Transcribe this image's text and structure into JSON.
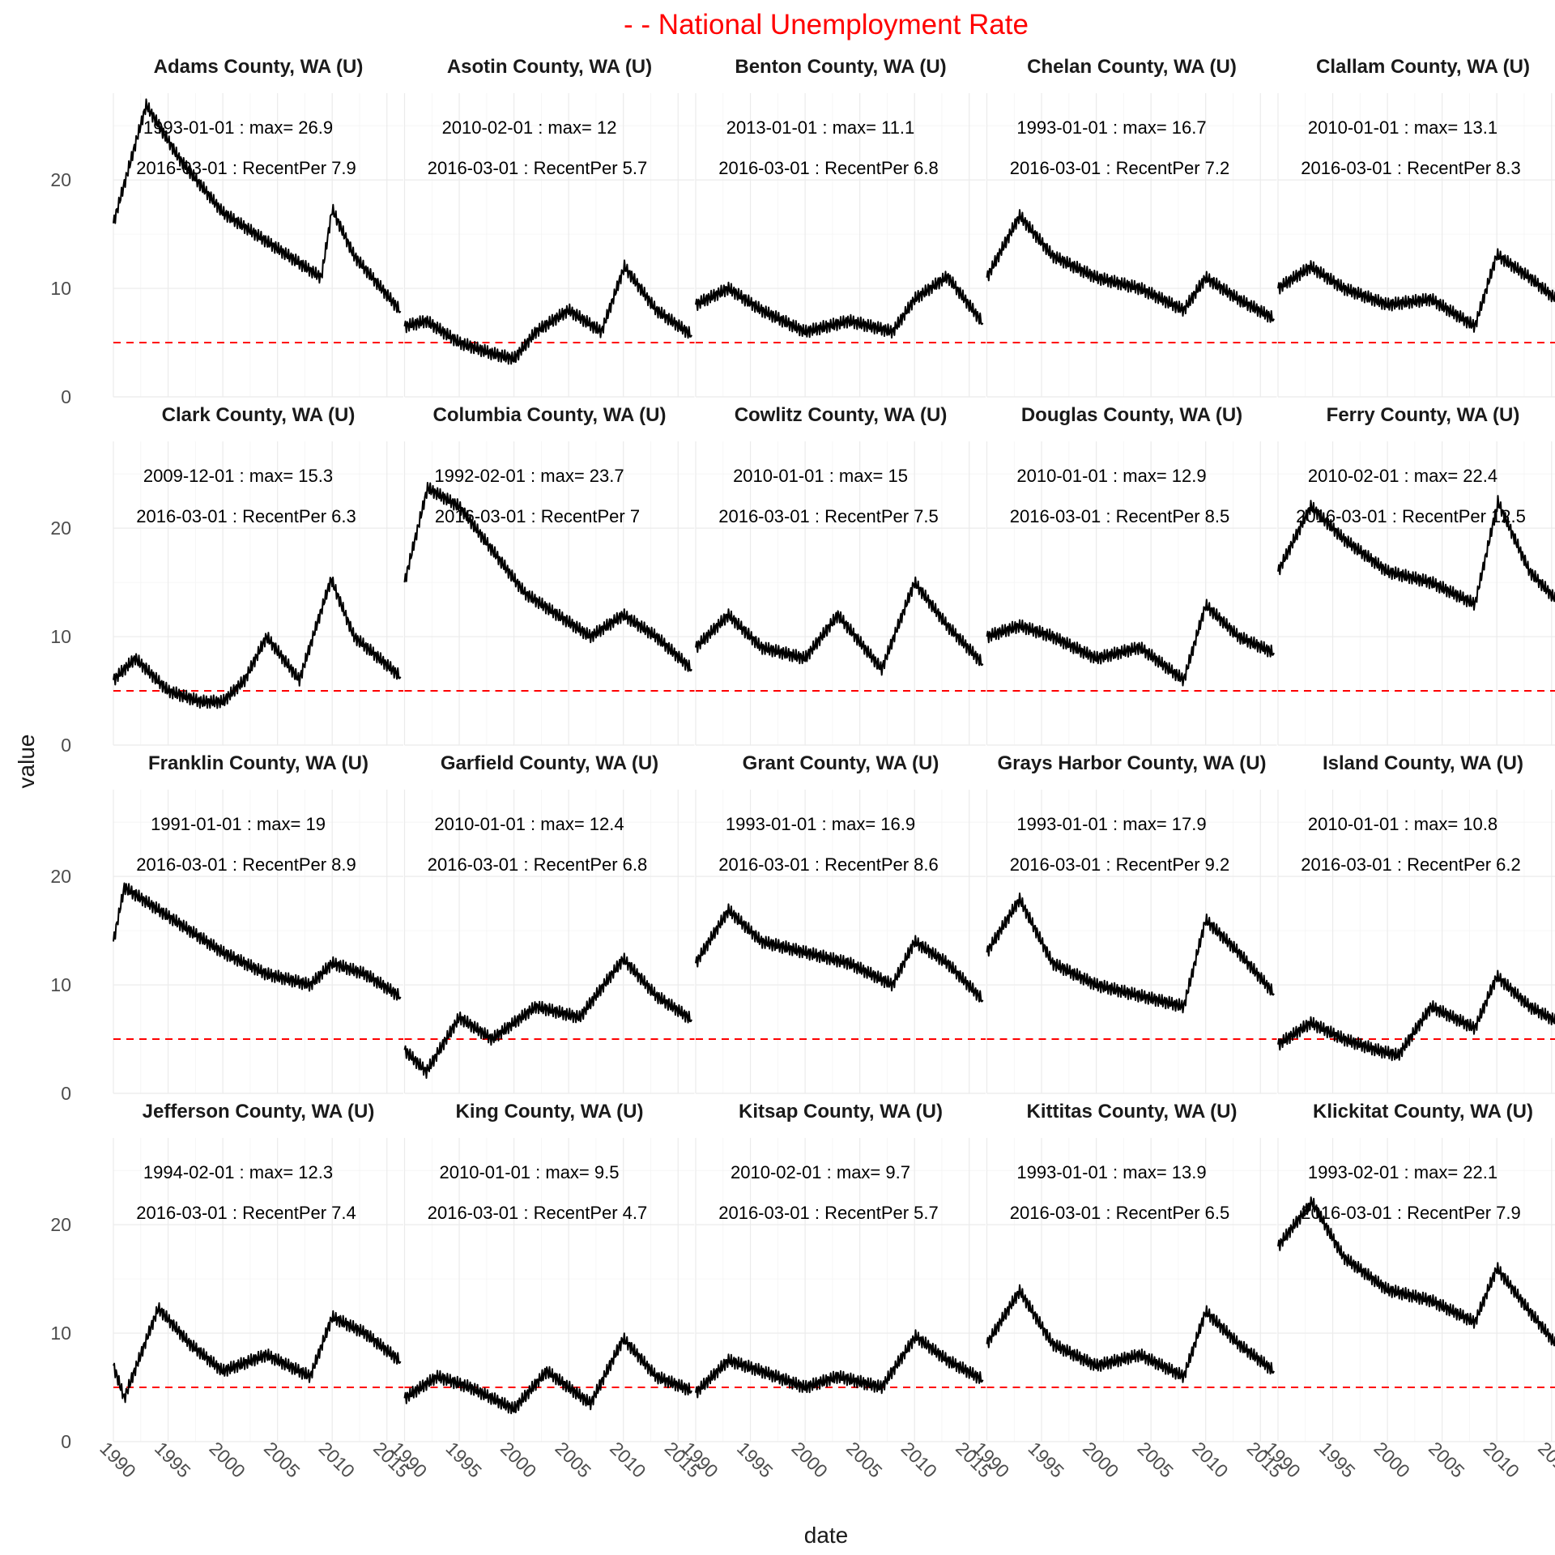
{
  "chart_data": {
    "type": "line",
    "title": "- - National Unemployment Rate",
    "xlabel": "date",
    "ylabel": "value",
    "xlim": [
      1990,
      2016.5
    ],
    "ylim": [
      0,
      28
    ],
    "x_ticks": [
      "1990",
      "1995",
      "2000",
      "2005",
      "2010",
      "2015"
    ],
    "y_ticks": [
      0,
      10,
      20
    ],
    "reference_line": {
      "value": 5.0,
      "color": "#ff0000",
      "style": "dashed"
    },
    "grid": true,
    "series_color": "#000000",
    "panels": [
      {
        "name": "Adams County, WA (U)",
        "max_label": "1993-01-01 : max= 26.9",
        "recent_label": "2016-03-01 : RecentPer 7.9",
        "x": [
          1990,
          1993,
          1996,
          2000,
          2003,
          2006,
          2009,
          2010,
          2012,
          2016.25
        ],
        "y": [
          16,
          26.9,
          22,
          17,
          15,
          13,
          11,
          17.3,
          13,
          7.9
        ]
      },
      {
        "name": "Asotin County, WA (U)",
        "max_label": "2010-02-01 : max= 12",
        "recent_label": "2016-03-01 : RecentPer 5.7",
        "x": [
          1990,
          1992,
          1995,
          1998,
          2000,
          2002,
          2005,
          2008,
          2010.1,
          2013,
          2016.25
        ],
        "y": [
          6.5,
          7,
          5,
          4,
          3.5,
          6,
          8,
          6,
          12,
          8,
          5.7
        ]
      },
      {
        "name": "Benton County, WA (U)",
        "max_label": "2013-01-01 : max= 11.1",
        "recent_label": "2016-03-01 : RecentPer 6.8",
        "x": [
          1990,
          1993,
          1996,
          2000,
          2004,
          2008,
          2010,
          2013,
          2016.25
        ],
        "y": [
          8.5,
          10,
          8,
          6,
          7,
          6,
          9,
          11.1,
          6.8
        ]
      },
      {
        "name": "Chelan County, WA (U)",
        "max_label": "1993-01-01 : max= 16.7",
        "recent_label": "2016-03-01 : RecentPer 7.2",
        "x": [
          1990,
          1993,
          1996,
          2000,
          2004,
          2008,
          2010,
          2013,
          2016.25
        ],
        "y": [
          11,
          16.7,
          13,
          11,
          10,
          8,
          11,
          9,
          7.2
        ]
      },
      {
        "name": "Clallam County, WA (U)",
        "max_label": "2010-01-01 : max= 13.1",
        "recent_label": "2016-03-01 : RecentPer 8.3",
        "x": [
          1990,
          1993,
          1996,
          2000,
          2004,
          2008,
          2010,
          2013,
          2016.25
        ],
        "y": [
          10,
          12,
          10,
          8.5,
          9,
          6.5,
          13.1,
          11,
          8.3
        ]
      },
      {
        "name": "Clark County, WA (U)",
        "max_label": "2009-12-01 : max= 15.3",
        "recent_label": "2016-03-01 : RecentPer 6.3",
        "x": [
          1990,
          1992,
          1995,
          1998,
          2000,
          2002,
          2004,
          2007,
          2009.9,
          2012,
          2016.25
        ],
        "y": [
          6,
          8,
          5,
          4,
          4,
          6,
          10,
          6,
          15.3,
          10,
          6.3
        ]
      },
      {
        "name": "Columbia County, WA (U)",
        "max_label": "1992-02-01 : max= 23.7",
        "recent_label": "2016-03-01 : RecentPer 7",
        "x": [
          1990,
          1992.1,
          1995,
          1998,
          2001,
          2004,
          2007,
          2010,
          2013,
          2016.25
        ],
        "y": [
          15,
          23.7,
          22,
          18,
          14,
          12,
          10,
          12,
          10,
          7
        ]
      },
      {
        "name": "Cowlitz County, WA (U)",
        "max_label": "2010-01-01 : max= 15",
        "recent_label": "2016-03-01 : RecentPer 7.5",
        "x": [
          1990,
          1993,
          1996,
          2000,
          2003,
          2007,
          2010,
          2013,
          2016.25
        ],
        "y": [
          9,
          12,
          9,
          8,
          12,
          7,
          15,
          11,
          7.5
        ]
      },
      {
        "name": "Douglas County, WA (U)",
        "max_label": "2010-01-01 : max= 12.9",
        "recent_label": "2016-03-01 : RecentPer 8.5",
        "x": [
          1990,
          1993,
          1996,
          2000,
          2004,
          2008,
          2010,
          2013,
          2016.25
        ],
        "y": [
          10,
          11,
          10,
          8,
          9,
          6,
          12.9,
          10,
          8.5
        ]
      },
      {
        "name": "Ferry County, WA (U)",
        "max_label": "2010-02-01 : max= 22.4",
        "recent_label": "2016-03-01 : RecentPer 12.5",
        "x": [
          1990,
          1993,
          1996,
          2000,
          2004,
          2008,
          2010.1,
          2013,
          2016.25
        ],
        "y": [
          16,
          22,
          19,
          16,
          15,
          13,
          22.4,
          16,
          12.5
        ]
      },
      {
        "name": "Franklin County, WA (U)",
        "max_label": "1991-01-01 : max= 19",
        "recent_label": "2016-03-01 : RecentPer 8.9",
        "x": [
          1990,
          1991,
          1994,
          1997,
          2000,
          2004,
          2008,
          2010,
          2013,
          2016.25
        ],
        "y": [
          14,
          19,
          17,
          15,
          13,
          11,
          10,
          12,
          11,
          8.9
        ]
      },
      {
        "name": "Garfield County, WA (U)",
        "max_label": "2010-01-01 : max= 12.4",
        "recent_label": "2016-03-01 : RecentPer 6.8",
        "x": [
          1990,
          1992,
          1995,
          1998,
          2002,
          2006,
          2010,
          2013,
          2016.25
        ],
        "y": [
          4,
          2,
          7,
          5,
          8,
          7,
          12.4,
          9,
          6.8
        ]
      },
      {
        "name": "Grant County, WA (U)",
        "max_label": "1993-01-01 : max= 16.9",
        "recent_label": "2016-03-01 : RecentPer 8.6",
        "x": [
          1990,
          1993,
          1996,
          2000,
          2004,
          2008,
          2010,
          2013,
          2016.25
        ],
        "y": [
          12,
          16.9,
          14,
          13,
          12,
          10,
          14,
          12,
          8.6
        ]
      },
      {
        "name": "Grays Harbor County, WA (U)",
        "max_label": "1993-01-01 : max= 17.9",
        "recent_label": "2016-03-01 : RecentPer 9.2",
        "x": [
          1990,
          1993,
          1996,
          2000,
          2004,
          2008,
          2010,
          2013,
          2016.25
        ],
        "y": [
          13,
          17.9,
          12,
          10,
          9,
          8,
          16,
          13,
          9.2
        ]
      },
      {
        "name": "Island County, WA (U)",
        "max_label": "2010-01-01 : max= 10.8",
        "recent_label": "2016-03-01 : RecentPer 6.2",
        "x": [
          1990,
          1993,
          1996,
          1999,
          2001,
          2004,
          2008,
          2010,
          2013,
          2016.25
        ],
        "y": [
          4.5,
          6.5,
          5,
          4,
          3.5,
          8,
          6,
          10.8,
          8,
          6.2
        ]
      },
      {
        "name": "Jefferson County, WA (U)",
        "max_label": "1994-02-01 : max= 12.3",
        "recent_label": "2016-03-01 : RecentPer 7.4",
        "x": [
          1990,
          1991,
          1994.1,
          1997,
          2000,
          2004,
          2008,
          2010,
          2013,
          2016.25
        ],
        "y": [
          7,
          4,
          12.3,
          9,
          6.5,
          8,
          6,
          11.5,
          10,
          7.4
        ]
      },
      {
        "name": "King County, WA (U)",
        "max_label": "2010-01-01 : max= 9.5",
        "recent_label": "2016-03-01 : RecentPer 4.7",
        "x": [
          1990,
          1993,
          1996,
          2000,
          2003,
          2007,
          2010,
          2013,
          2016.25
        ],
        "y": [
          4,
          6,
          5,
          3,
          6.5,
          3.5,
          9.5,
          6,
          4.7
        ]
      },
      {
        "name": "Kitsap County, WA (U)",
        "max_label": "2010-02-01 : max= 9.7",
        "recent_label": "2016-03-01 : RecentPer 5.7",
        "x": [
          1990,
          1993,
          1996,
          2000,
          2003,
          2007,
          2010.1,
          2013,
          2016.25
        ],
        "y": [
          4.5,
          7.5,
          6.5,
          5,
          6,
          5,
          9.7,
          7.5,
          5.7
        ]
      },
      {
        "name": "Kittitas County, WA (U)",
        "max_label": "1993-01-01 : max= 13.9",
        "recent_label": "2016-03-01 : RecentPer 6.5",
        "x": [
          1990,
          1993,
          1996,
          2000,
          2004,
          2008,
          2010,
          2013,
          2016.25
        ],
        "y": [
          9,
          13.9,
          9,
          7,
          8,
          6,
          12,
          9,
          6.5
        ]
      },
      {
        "name": "Klickitat County, WA (U)",
        "max_label": "1993-02-01 : max= 22.1",
        "recent_label": "2016-03-01 : RecentPer 7.9",
        "x": [
          1990,
          1993.1,
          1996,
          2000,
          2004,
          2008,
          2010,
          2013,
          2016.25
        ],
        "y": [
          18,
          22.1,
          17,
          14,
          13,
          11,
          16,
          12,
          7.9
        ]
      }
    ]
  }
}
